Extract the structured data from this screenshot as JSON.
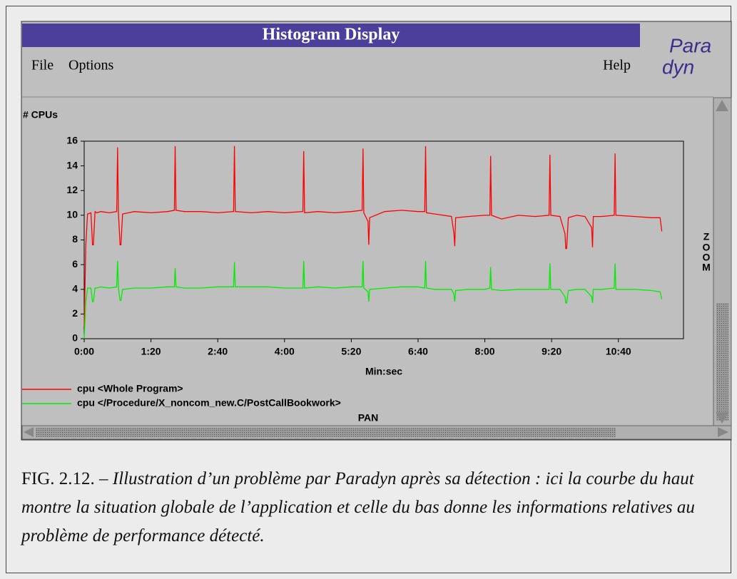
{
  "window": {
    "title": "Histogram Display",
    "menu": [
      "File",
      "Options"
    ],
    "help": "Help",
    "logo": [
      "Para",
      "dyn"
    ],
    "zoom": [
      "Z",
      "O",
      "O",
      "M"
    ],
    "pan": "PAN"
  },
  "chart_data": {
    "type": "line",
    "ylabel": "# CPUs",
    "xlabel": "Min:sec",
    "x": [
      0,
      2,
      4,
      8,
      10,
      11,
      13,
      15,
      20,
      30,
      39,
      40,
      41,
      43,
      44,
      46,
      60,
      80,
      100,
      108,
      109,
      110,
      120,
      140,
      160,
      179,
      180,
      181,
      200,
      220,
      240,
      262,
      263,
      264,
      280,
      300,
      320,
      333,
      334,
      335,
      340,
      341,
      342,
      360,
      380,
      400,
      408,
      409,
      410,
      420,
      440,
      443,
      444,
      445,
      460,
      480,
      486,
      487,
      488,
      500,
      520,
      540,
      557,
      558,
      559,
      570,
      576,
      577,
      578,
      580,
      590,
      600,
      608,
      609,
      610,
      620,
      635,
      636,
      637,
      660,
      680,
      690,
      692
    ],
    "series": [
      {
        "name": "cpu <Whole Program>",
        "color": "#ff0000",
        "values": [
          1,
          7.6,
          10.1,
          10.2,
          7.6,
          7.6,
          10.3,
          10.2,
          10.3,
          10.2,
          10.3,
          15.5,
          10.2,
          7.6,
          7.6,
          10.1,
          10.3,
          10.2,
          10.3,
          10.4,
          15.6,
          10.4,
          10.3,
          10.3,
          10.2,
          10.3,
          15.6,
          10.3,
          10.2,
          10.3,
          10.2,
          10.3,
          15.2,
          10.2,
          10.3,
          10.2,
          10.3,
          10.4,
          15.4,
          10.2,
          9.5,
          7.6,
          9.8,
          10.3,
          10.4,
          10.3,
          10.3,
          15.6,
          10.2,
          10.1,
          9.9,
          8.5,
          7.5,
          9.8,
          9.9,
          10.0,
          10.0,
          14.8,
          10.0,
          9.7,
          10.0,
          9.9,
          10.0,
          14.9,
          10.0,
          9.9,
          8.5,
          7.3,
          7.3,
          9.8,
          10.0,
          9.9,
          9.0,
          7.4,
          9.9,
          9.9,
          10.0,
          15.0,
          10.0,
          9.9,
          9.8,
          9.8,
          8.7
        ]
      },
      {
        "name": "cpu </Procedure/X_noncom_new.C/PostCallBookwork>",
        "color": "#00ee00",
        "values": [
          0,
          3,
          4.1,
          4.1,
          3,
          3,
          4.1,
          4.1,
          4.2,
          4.1,
          4.2,
          6.3,
          4.1,
          3.1,
          3.1,
          4.0,
          4.1,
          4.1,
          4.2,
          4.2,
          5.7,
          4.2,
          4.1,
          4.1,
          4.2,
          4.2,
          6.2,
          4.2,
          4.2,
          4.2,
          4.1,
          4.1,
          6.3,
          4.1,
          4.2,
          4.1,
          4.2,
          4.2,
          6.3,
          4.1,
          3.8,
          3.0,
          4.0,
          4.1,
          4.2,
          4.2,
          4.1,
          6.3,
          4.1,
          4.0,
          4.0,
          3.6,
          3.0,
          3.9,
          4.0,
          4.0,
          4.1,
          5.8,
          4.0,
          3.9,
          4.0,
          4.0,
          4.0,
          6.1,
          4.0,
          4.0,
          3.4,
          2.9,
          2.9,
          3.9,
          4.0,
          4.0,
          3.4,
          2.9,
          4.0,
          4.0,
          4.1,
          6.1,
          4.0,
          4.0,
          3.9,
          3.8,
          3.2
        ]
      }
    ],
    "xlim": [
      0,
      718
    ],
    "ylim": [
      0,
      16
    ],
    "xticks": [
      {
        "value": 0,
        "label": "0:00"
      },
      {
        "value": 80,
        "label": "1:20"
      },
      {
        "value": 160,
        "label": "2:40"
      },
      {
        "value": 240,
        "label": "4:00"
      },
      {
        "value": 320,
        "label": "5:20"
      },
      {
        "value": 400,
        "label": "6:40"
      },
      {
        "value": 480,
        "label": "8:00"
      },
      {
        "value": 560,
        "label": "9:20"
      },
      {
        "value": 640,
        "label": "10:40"
      }
    ],
    "yticks": [
      0,
      2,
      4,
      6,
      8,
      10,
      12,
      14,
      16
    ],
    "grid": false
  },
  "caption": {
    "label": "FIG. 2.12. – ",
    "text": "Illustration d’un problème par Paradyn après sa détection : ici la courbe du haut montre la situation globale de l’application et celle du bas donne les informations relatives au problème de performance détecté."
  }
}
